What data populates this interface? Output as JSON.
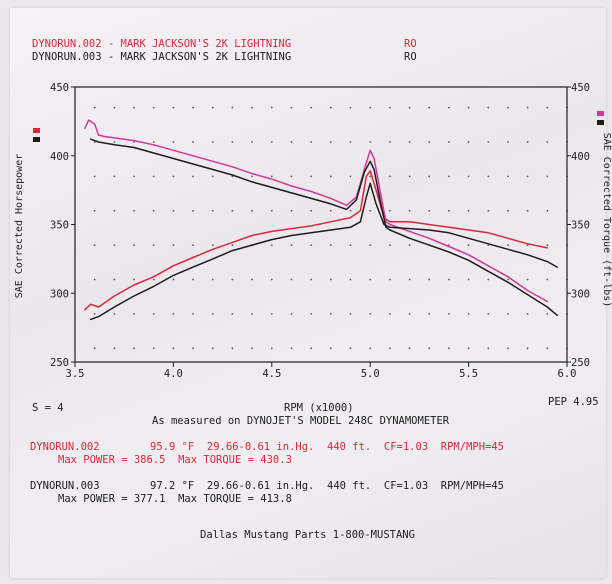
{
  "header": {
    "run1_title": "DYNORUN.002 - MARK JACKSON'S 2K LIGHTNING",
    "run1_code": "RO",
    "run2_title": "DYNORUN.003 - MARK JACKSON'S 2K LIGHTNING",
    "run2_code": "RO"
  },
  "chart_data": {
    "type": "line",
    "xlabel": "RPM (x1000)",
    "ylabel_left": "SAE Corrected Horsepower",
    "ylabel_right": "SAE Corrected Torque (ft-lbs)",
    "xlim": [
      3.5,
      6.0
    ],
    "ylim": [
      250,
      450
    ],
    "x_ticks": [
      "3.5",
      "4.0",
      "4.5",
      "5.0",
      "5.5",
      "6.0"
    ],
    "y_ticks_left": [
      "450",
      "400",
      "350",
      "300",
      "250"
    ],
    "y_ticks_right": [
      "450",
      "400",
      "350",
      "300",
      "250"
    ],
    "grid": "dotted",
    "colors": {
      "run1": "#d8283c",
      "run1_torque": "#cc3a9a",
      "run2": "#1d1d1d"
    },
    "series": [
      {
        "name": "DYNORUN.002",
        "kind": "horsepower",
        "x": [
          3.55,
          3.58,
          3.62,
          3.7,
          3.8,
          3.9,
          4.0,
          4.1,
          4.2,
          4.3,
          4.4,
          4.5,
          4.6,
          4.7,
          4.8,
          4.9,
          4.95,
          4.98,
          5.0,
          5.03,
          5.07,
          5.1,
          5.2,
          5.3,
          5.4,
          5.5,
          5.6,
          5.7,
          5.8,
          5.9
        ],
        "y": [
          288,
          292,
          290,
          298,
          306,
          312,
          320,
          326,
          332,
          337,
          342,
          345,
          347,
          349,
          352,
          355,
          360,
          385,
          389,
          375,
          355,
          352,
          352,
          350,
          348,
          346,
          344,
          340,
          336,
          333
        ]
      },
      {
        "name": "DYNORUN.002",
        "kind": "torque",
        "x": [
          3.55,
          3.57,
          3.6,
          3.62,
          3.65,
          3.7,
          3.8,
          3.9,
          4.0,
          4.1,
          4.2,
          4.3,
          4.4,
          4.5,
          4.6,
          4.7,
          4.8,
          4.88,
          4.93,
          4.97,
          5.0,
          5.02,
          5.05,
          5.08,
          5.1,
          5.2,
          5.3,
          5.4,
          5.5,
          5.6,
          5.7,
          5.8,
          5.9
        ],
        "y": [
          420,
          426,
          423,
          415,
          414,
          413,
          411,
          408,
          404,
          400,
          396,
          392,
          387,
          383,
          378,
          374,
          369,
          364,
          370,
          390,
          404,
          398,
          375,
          352,
          350,
          345,
          340,
          334,
          328,
          320,
          312,
          302,
          294
        ]
      },
      {
        "name": "DYNORUN.003",
        "kind": "horsepower",
        "x": [
          3.58,
          3.62,
          3.7,
          3.8,
          3.9,
          4.0,
          4.1,
          4.2,
          4.3,
          4.4,
          4.5,
          4.6,
          4.7,
          4.8,
          4.9,
          4.95,
          4.98,
          5.0,
          5.03,
          5.07,
          5.1,
          5.2,
          5.3,
          5.4,
          5.5,
          5.6,
          5.7,
          5.8,
          5.9,
          5.95
        ],
        "y": [
          281,
          283,
          290,
          298,
          305,
          313,
          319,
          325,
          331,
          335,
          339,
          342,
          344,
          346,
          348,
          352,
          370,
          380,
          365,
          350,
          348,
          347,
          346,
          344,
          340,
          336,
          332,
          328,
          323,
          319
        ]
      },
      {
        "name": "DYNORUN.003",
        "kind": "torque",
        "x": [
          3.58,
          3.62,
          3.7,
          3.8,
          3.9,
          4.0,
          4.1,
          4.2,
          4.3,
          4.4,
          4.5,
          4.6,
          4.7,
          4.8,
          4.88,
          4.93,
          4.97,
          5.0,
          5.02,
          5.05,
          5.08,
          5.1,
          5.2,
          5.3,
          5.4,
          5.5,
          5.6,
          5.7,
          5.8,
          5.9,
          5.95
        ],
        "y": [
          412,
          410,
          408,
          406,
          402,
          398,
          394,
          390,
          386,
          381,
          377,
          373,
          369,
          365,
          361,
          368,
          388,
          396,
          390,
          368,
          348,
          346,
          340,
          335,
          330,
          324,
          316,
          308,
          299,
          290,
          284
        ]
      }
    ],
    "info_s": "S = 4",
    "info_pep": "PEP 4.95",
    "subtitle": "As measured on DYNOJET'S MODEL 248C DYNAMOMETER",
    "run1_info": {
      "name": "DYNORUN.002",
      "line1": "95.9 °F  29.66-0.61 in.Hg.  440 ft.  CF=1.03  RPM/MPH=45",
      "line2": "Max POWER = 386.5  Max TORQUE = 430.3"
    },
    "run2_info": {
      "name": "DYNORUN.003",
      "line1": "97.2 °F  29.66-0.61 in.Hg.  440 ft.  CF=1.03  RPM/MPH=45",
      "line2": "Max POWER = 377.1  Max TORQUE = 413.8"
    },
    "footer": "Dallas Mustang Parts 1-800-MUSTANG"
  }
}
